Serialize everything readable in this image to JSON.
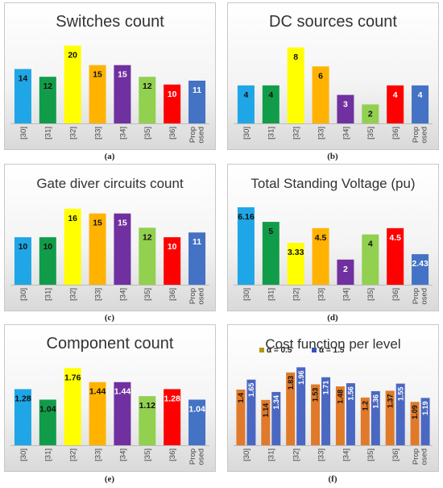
{
  "captions": [
    "(a)",
    "(b)",
    "(c)",
    "(d)",
    "(e)",
    "(f)"
  ],
  "chart_data": [
    {
      "type": "bar",
      "title": "Switches count",
      "categories": [
        "[30]",
        "[31]",
        "[32]",
        "[33]",
        "[34]",
        "[35]",
        "[36]",
        "Prop osed"
      ],
      "values": [
        14,
        12,
        20,
        15,
        15,
        12,
        10,
        11
      ],
      "value_labels": [
        "14",
        "12",
        "20",
        "15",
        "15",
        "12",
        "10",
        "11"
      ],
      "ylim": [
        0,
        22
      ],
      "grid": false
    },
    {
      "type": "bar",
      "title": "DC sources count",
      "categories": [
        "[30]",
        "[31]",
        "[32]",
        "[33]",
        "[34]",
        "[35]",
        "[36]",
        "Prop osed"
      ],
      "values": [
        4,
        4,
        8,
        6,
        3,
        2,
        4,
        4
      ],
      "value_labels": [
        "4",
        "4",
        "8",
        "6",
        "3",
        "2",
        "4",
        "4"
      ],
      "ylim": [
        0,
        9
      ],
      "grid": false
    },
    {
      "type": "bar",
      "title": "Gate diver circuits count",
      "categories": [
        "[30]",
        "[31]",
        "[32]",
        "[33]",
        "[34]",
        "[35]",
        "[36]",
        "Prop osed"
      ],
      "values": [
        10,
        10,
        16,
        15,
        15,
        12,
        10,
        11
      ],
      "value_labels": [
        "10",
        "10",
        "16",
        "15",
        "15",
        "12",
        "10",
        "11"
      ],
      "ylim": [
        0,
        18
      ],
      "grid": false
    },
    {
      "type": "bar",
      "title": "Total Standing Voltage (pu)",
      "categories": [
        "[30]",
        "[31]",
        "[32]",
        "[33]",
        "[34]",
        "[35]",
        "[36]",
        "Prop osed"
      ],
      "values": [
        6.16,
        5,
        3.33,
        4.5,
        2,
        4,
        4.5,
        2.43
      ],
      "value_labels": [
        "6.16",
        "5",
        "3.33",
        "4.5",
        "2",
        "4",
        "4.5",
        "2.43"
      ],
      "ylim": [
        0,
        6.8
      ],
      "grid": false
    },
    {
      "type": "bar",
      "title": "Component count",
      "categories": [
        "[30]",
        "[31]",
        "[32]",
        "[33]",
        "[34]",
        "[35]",
        "[36]",
        "Prop osed"
      ],
      "values": [
        1.28,
        1.04,
        1.76,
        1.44,
        1.44,
        1.12,
        1.28,
        1.04
      ],
      "value_labels": [
        "1.28",
        "1.04",
        "1.76",
        "1.44",
        "1.44",
        "1.12",
        "1.28",
        "1.04"
      ],
      "ylim": [
        0,
        1.95
      ],
      "grid": false
    },
    {
      "type": "bar",
      "title": "Cost function per level",
      "categories": [
        "[30]",
        "[31]",
        "[32]",
        "[33]",
        "[34]",
        "[35]",
        "[36]",
        "Prop osed"
      ],
      "series": [
        {
          "name": "α = 0.5",
          "values": [
            1.4,
            1.14,
            1.83,
            1.53,
            1.48,
            1.2,
            1.37,
            1.09
          ],
          "value_labels": [
            "1.4",
            "1.14",
            "1.83",
            "1.53",
            "1.48",
            "1.2",
            "1.37",
            "1.09"
          ],
          "color": "#e07a2a"
        },
        {
          "name": "α = 1.5",
          "values": [
            1.65,
            1.34,
            1.96,
            1.71,
            1.56,
            1.36,
            1.55,
            1.19
          ],
          "value_labels": [
            "1.65",
            "1.34",
            "1.96",
            "1.71",
            "1.56",
            "1.36",
            "1.55",
            "1.19"
          ],
          "color": "#4a68c2"
        }
      ],
      "legend_placement": "top-left",
      "ylim": [
        0,
        2.15
      ],
      "grid": false
    }
  ],
  "bar_colors": [
    "#1fa6e6",
    "#119c4a",
    "#ffff00",
    "#ffb300",
    "#7030a0",
    "#92d050",
    "#ff0000",
    "#4472c4"
  ],
  "legend_swatch_colors": [
    "#b8960a",
    "#3c53b8"
  ]
}
